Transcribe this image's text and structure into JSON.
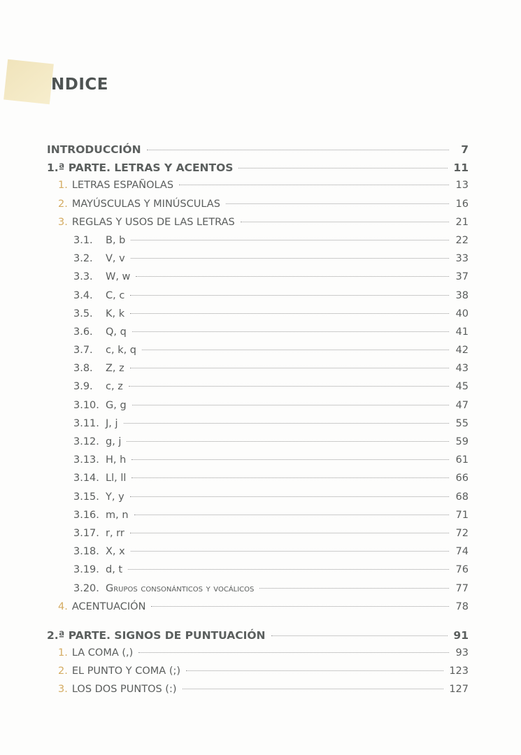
{
  "title": "NDICE",
  "entries": [
    {
      "level": 0,
      "num": "",
      "label": "INTRODUCCIÓN",
      "page": "7"
    },
    {
      "level": 0,
      "num": "",
      "label": "1.ª PARTE. LETRAS Y ACENTOS",
      "page": "11"
    },
    {
      "level": 1,
      "num": "1.",
      "label": "LETRAS ESPAÑOLAS",
      "page": "13"
    },
    {
      "level": 1,
      "num": "2.",
      "label": "MAYÚSCULAS Y MINÚSCULAS",
      "page": "16"
    },
    {
      "level": 1,
      "num": "3.",
      "label": "REGLAS Y USOS DE LAS LETRAS",
      "page": "21"
    },
    {
      "level": 2,
      "num": "3.1.",
      "label": "B, b",
      "page": "22"
    },
    {
      "level": 2,
      "num": "3.2.",
      "label": "V, v",
      "page": "33"
    },
    {
      "level": 2,
      "num": "3.3.",
      "label": "W, w",
      "page": "37"
    },
    {
      "level": 2,
      "num": "3.4.",
      "label": "C, c",
      "page": "38"
    },
    {
      "level": 2,
      "num": "3.5.",
      "label": "K, k",
      "page": "40"
    },
    {
      "level": 2,
      "num": "3.6.",
      "label": "Q, q",
      "page": "41"
    },
    {
      "level": 2,
      "num": "3.7.",
      "label": "c, k, q",
      "page": "42"
    },
    {
      "level": 2,
      "num": "3.8.",
      "label": "Z, z",
      "page": "43"
    },
    {
      "level": 2,
      "num": "3.9.",
      "label": "c, z",
      "page": "45"
    },
    {
      "level": 2,
      "num": "3.10.",
      "label": "G, g",
      "page": "47"
    },
    {
      "level": 2,
      "num": "3.11.",
      "label": "J, j",
      "page": "55"
    },
    {
      "level": 2,
      "num": "3.12.",
      "label": "g, j",
      "page": "59"
    },
    {
      "level": 2,
      "num": "3.13.",
      "label": "H, h",
      "page": "61"
    },
    {
      "level": 2,
      "num": "3.14.",
      "label": "Ll, ll",
      "page": "66"
    },
    {
      "level": 2,
      "num": "3.15.",
      "label": "Y, y",
      "page": "68"
    },
    {
      "level": 2,
      "num": "3.16.",
      "label": "m, n",
      "page": "71"
    },
    {
      "level": 2,
      "num": "3.17.",
      "label": "r, rr",
      "page": "72"
    },
    {
      "level": 2,
      "num": "3.18.",
      "label": "X, x",
      "page": "74"
    },
    {
      "level": 2,
      "num": "3.19.",
      "label": "d, t",
      "page": "76"
    },
    {
      "level": 2,
      "num": "3.20.",
      "label": "Grupos consonánticos y vocálicos",
      "page": "77",
      "smallcaps": true
    },
    {
      "level": 1,
      "num": "4.",
      "label": "ACENTUACIÓN",
      "page": "78"
    },
    {
      "level": 0,
      "num": "",
      "label": "2.ª PARTE. SIGNOS DE PUNTUACIÓN",
      "page": "91",
      "gap": true
    },
    {
      "level": 1,
      "num": "1.",
      "label": "LA COMA (,)",
      "page": "93"
    },
    {
      "level": 1,
      "num": "2.",
      "label": "EL PUNTO Y COMA (;)",
      "page": "123"
    },
    {
      "level": 1,
      "num": "3.",
      "label": "LOS DOS PUNTOS (:)",
      "page": "127"
    }
  ],
  "colors": {
    "text": "#5a5d5c",
    "accent": "#d4ac63"
  }
}
